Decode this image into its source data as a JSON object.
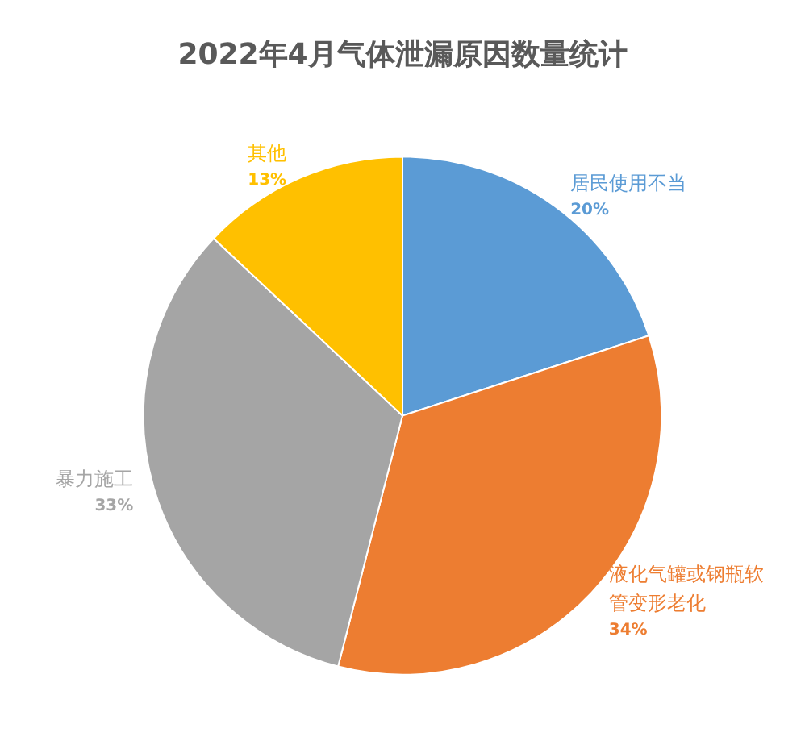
{
  "chart_data": {
    "type": "pie",
    "title": "2022年4月气体泄漏原因数量统计",
    "categories": [
      "居民使用不当",
      "液化气罐或钢瓶软管变形老化",
      "暴力施工",
      "其他"
    ],
    "values": [
      20,
      34,
      33,
      13
    ],
    "colors": [
      "#5b9bd5",
      "#ed7d31",
      "#a5a5a5",
      "#ffc000"
    ],
    "value_labels": [
      "20%",
      "34%",
      "33%",
      "13%"
    ],
    "legend": false
  }
}
